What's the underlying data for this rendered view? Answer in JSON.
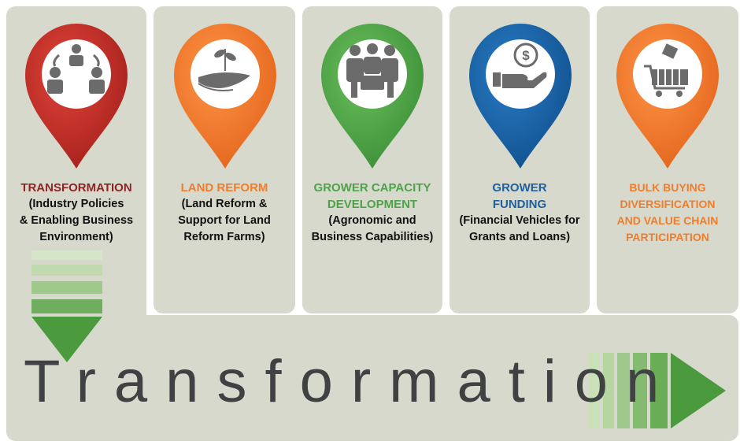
{
  "colors": {
    "panel": "#d6d9cc",
    "red": "#c8312a",
    "orange": "#f47a2c",
    "green": "#52a84a",
    "blue": "#1a64a6",
    "text_dark": "#111111",
    "title_red": "#8e2424",
    "title_orange": "#f07d2c",
    "title_green": "#4ea24a",
    "title_blue": "#1f5f9e"
  },
  "cards": [
    {
      "icon": "meeting-people-icon",
      "title": "TRANSFORMATION",
      "desc_lines": [
        "(Industry Policies",
        "& Enabling Business",
        "Environment)"
      ]
    },
    {
      "icon": "plant-in-hand-icon",
      "title": "LAND REFORM",
      "desc_lines": [
        "(Land Reform &",
        "Support for Land",
        "Reform Farms)"
      ]
    },
    {
      "icon": "group-meeting-icon",
      "title_lines": [
        "GROWER CAPACITY",
        "DEVELOPMENT"
      ],
      "desc_lines": [
        "(Agronomic and",
        "Business Capabilities)"
      ]
    },
    {
      "icon": "money-in-hand-icon",
      "title_lines": [
        "GROWER",
        "FUNDING"
      ],
      "desc_lines": [
        "(Financial Vehicles for",
        "Grants and Loans)"
      ]
    },
    {
      "icon": "shopping-cart-icon",
      "title_lines": [
        "BULK BUYING",
        "DIVERSIFICATION",
        "AND VALUE CHAIN",
        "PARTICIPATION"
      ]
    }
  ],
  "footer": {
    "word": "Transformation"
  }
}
